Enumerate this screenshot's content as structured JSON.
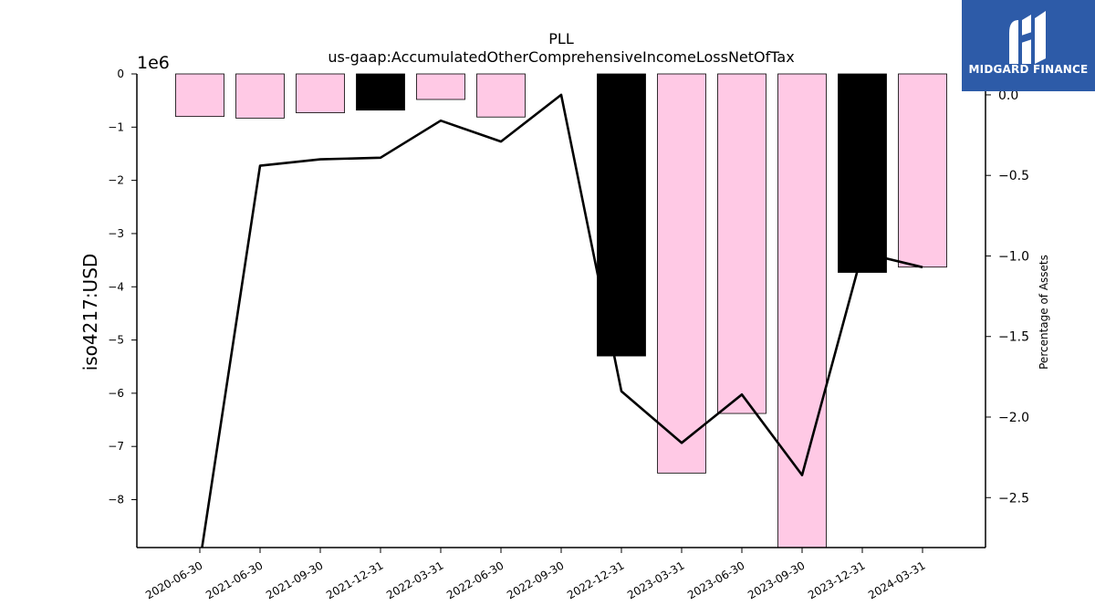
{
  "chart_data": {
    "type": "bar",
    "title": "PLL",
    "subtitle": "us-gaap:AccumulatedOtherComprehensiveIncomeLossNetOfTax",
    "ylabel": "iso4217:USD",
    "y_offset_label": "1e6",
    "y2label": "Percentage of Assets",
    "categories": [
      "2020-06-30",
      "2021-06-30",
      "2021-09-30",
      "2021-12-31",
      "2022-03-31",
      "2022-06-30",
      "2022-09-30",
      "2022-12-31",
      "2023-03-31",
      "2023-06-30",
      "2023-09-30",
      "2023-12-31",
      "2024-03-31"
    ],
    "series": [
      {
        "kind": "bar",
        "axis": "left",
        "values": [
          -800000,
          -830000,
          -730000,
          -680000,
          -480000,
          -810000,
          0,
          -5300000,
          -7500000,
          -6380000,
          -8900000,
          -3730000,
          -3630000
        ],
        "colors": [
          "#ffc9e5",
          "#ffc9e5",
          "#ffc9e5",
          "#000000",
          "#ffc9e5",
          "#ffc9e5",
          "#ffc9e5",
          "#000000",
          "#ffc9e5",
          "#ffc9e5",
          "#ffc9e5",
          "#000000",
          "#ffc9e5"
        ]
      },
      {
        "kind": "line",
        "axis": "right",
        "color": "#000000",
        "values": [
          -2.9,
          -0.44,
          -0.4,
          -0.39,
          -0.16,
          -0.29,
          0.0,
          -1.84,
          -2.16,
          -1.86,
          -2.36,
          -0.98,
          -1.07
        ]
      }
    ],
    "ylim": [
      -8900000,
      0
    ],
    "yticks": [
      0,
      -1,
      -2,
      -3,
      -4,
      -5,
      -6,
      -7,
      -8
    ],
    "y2lim": [
      -2.81,
      0.13
    ],
    "y2ticks": [
      "0.0",
      "−0.5",
      "−1.0",
      "−1.5",
      "−2.0",
      "−2.5"
    ],
    "y2tick_values": [
      0.0,
      -0.5,
      -1.0,
      -1.5,
      -2.0,
      -2.5
    ],
    "grid": false,
    "legend": "none"
  },
  "logo": {
    "text": "MIDGARD FINANCE",
    "bg_color": "#2d5ba8"
  }
}
